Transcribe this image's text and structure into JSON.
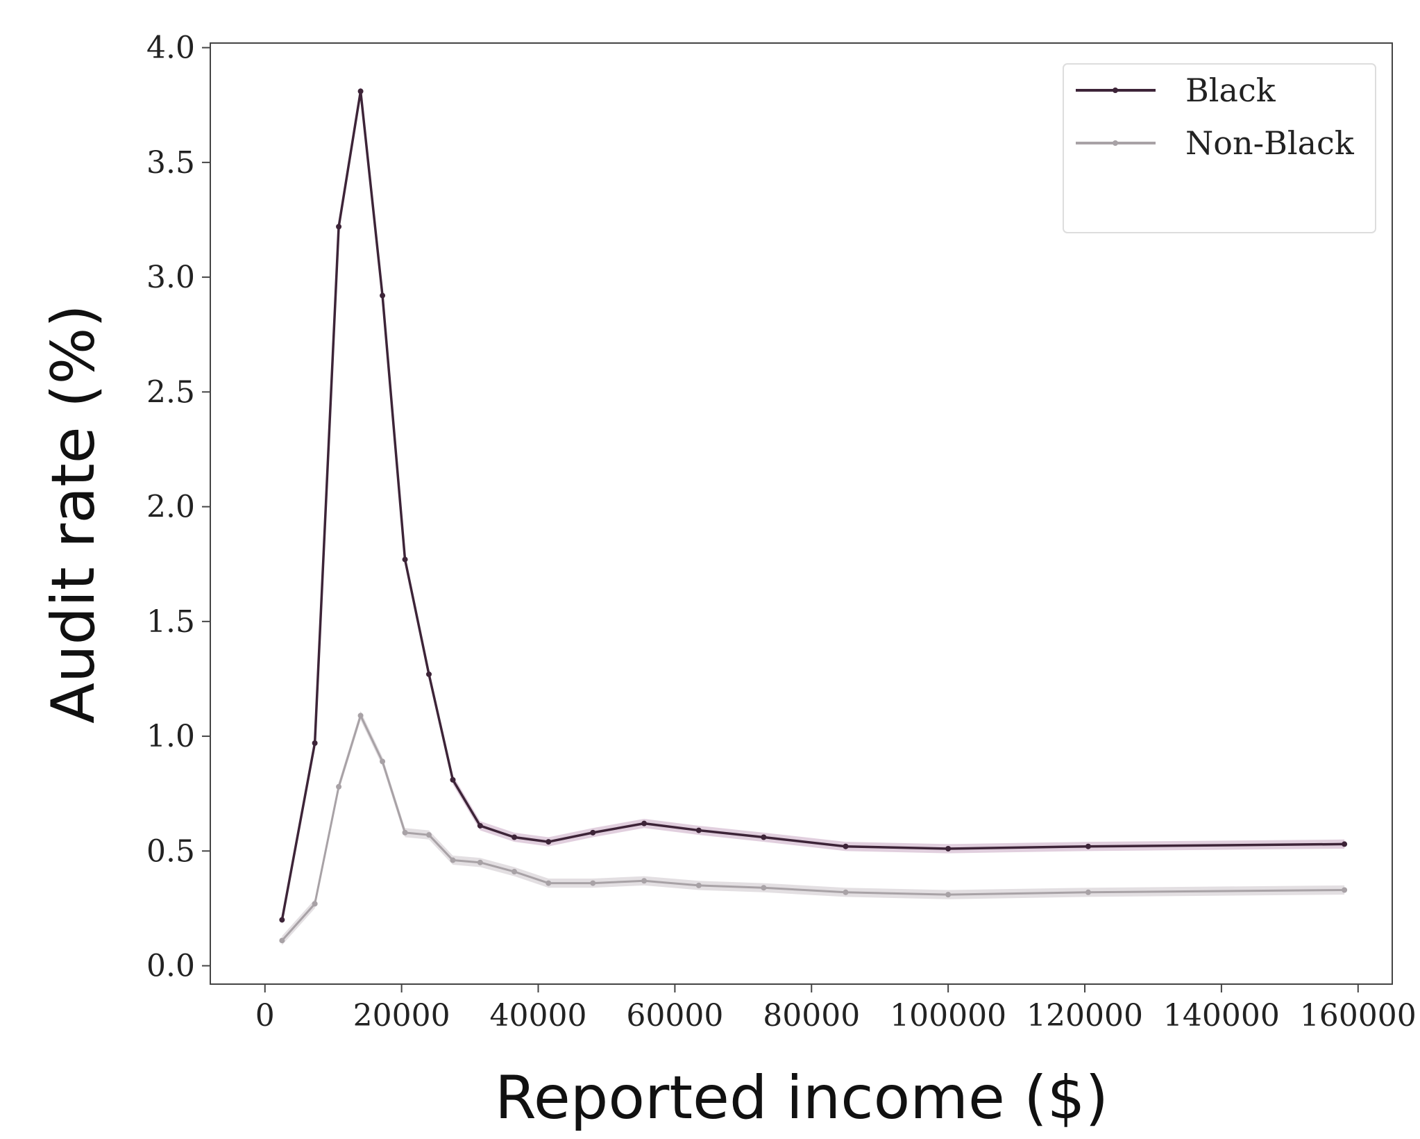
{
  "chart_data": {
    "type": "line",
    "title": "",
    "xlabel": "Reported income ($)",
    "ylabel": "Audit rate (%)",
    "xlim": [
      -8000,
      165000
    ],
    "ylim": [
      -0.08,
      4.02
    ],
    "xticks": [
      0,
      20000,
      40000,
      60000,
      80000,
      100000,
      120000,
      140000,
      160000
    ],
    "xtick_labels": [
      "0",
      "20000",
      "40000",
      "60000",
      "80000",
      "100000",
      "120000",
      "140000",
      "160000"
    ],
    "yticks": [
      0.0,
      0.5,
      1.0,
      1.5,
      2.0,
      2.5,
      3.0,
      3.5,
      4.0
    ],
    "ytick_labels": [
      "0.0",
      "0.5",
      "1.0",
      "1.5",
      "2.0",
      "2.5",
      "3.0",
      "3.5",
      "4.0"
    ],
    "grid": false,
    "legend_position": "top-right",
    "series": [
      {
        "name": "Black",
        "color": "#3d2438",
        "band_color": "#c9a8c2",
        "x": [
          2500,
          7300,
          10800,
          14000,
          17200,
          20500,
          24000,
          27500,
          31500,
          36500,
          41500,
          48000,
          55500,
          63500,
          73000,
          85000,
          100000,
          120500,
          158000
        ],
        "y": [
          0.2,
          0.97,
          3.22,
          3.81,
          2.92,
          1.77,
          1.27,
          0.81,
          0.61,
          0.56,
          0.54,
          0.58,
          0.62,
          0.59,
          0.56,
          0.52,
          0.51,
          0.52,
          0.53
        ]
      },
      {
        "name": "Non-Black",
        "color": "#a8a2a6",
        "band_color": "#ccc4ca",
        "x": [
          2500,
          7300,
          10800,
          14000,
          17200,
          20500,
          24000,
          27500,
          31500,
          36500,
          41500,
          48000,
          55500,
          63500,
          73000,
          85000,
          100000,
          120500,
          158000
        ],
        "y": [
          0.11,
          0.27,
          0.78,
          1.09,
          0.89,
          0.58,
          0.57,
          0.46,
          0.45,
          0.41,
          0.36,
          0.36,
          0.37,
          0.35,
          0.34,
          0.32,
          0.31,
          0.32,
          0.33
        ]
      }
    ]
  }
}
